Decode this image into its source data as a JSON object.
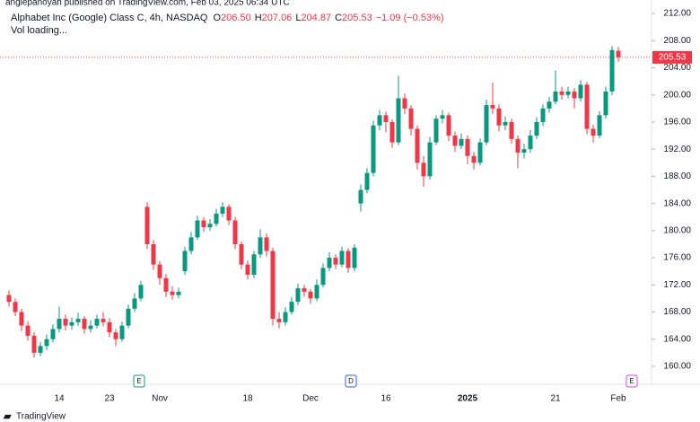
{
  "chart_data": {
    "type": "candlestick",
    "published": "anglepanoyan published on TradingView.com, Feb 03, 2025 06:34 UTC",
    "title": "Alphabet Inc (Google) Class C, 4h, NASDAQ",
    "ohlc_letters": [
      "O",
      "H",
      "L",
      "C"
    ],
    "ohlc_values": [
      "206.50",
      "207.06",
      "204.87",
      "205.53"
    ],
    "change": "−1.09 (−0.53%)",
    "status": "Vol loading...",
    "events": [
      "E",
      "D",
      "E"
    ],
    "brand": "TradingView",
    "up_color": "#089981",
    "down_color": "#f23645",
    "grid": false,
    "categories": [
      null,
      null,
      null,
      null,
      null,
      null,
      null,
      null,
      "14",
      null,
      null,
      null,
      null,
      null,
      null,
      null,
      "23",
      null,
      null,
      null,
      null,
      null,
      null,
      null,
      "Nov",
      null,
      null,
      null,
      null,
      null,
      null,
      null,
      null,
      null,
      null,
      null,
      null,
      null,
      "18",
      null,
      null,
      null,
      null,
      null,
      null,
      null,
      null,
      null,
      "Dec",
      null,
      null,
      null,
      null,
      null,
      null,
      null,
      null,
      null,
      null,
      null,
      "16",
      null,
      null,
      null,
      null,
      null,
      null,
      null,
      null,
      null,
      null,
      null,
      null,
      "2025",
      null,
      null,
      null,
      null,
      null,
      null,
      null,
      null,
      null,
      null,
      null,
      null,
      null,
      "21",
      null,
      null,
      null,
      null,
      null,
      null,
      null,
      null,
      null,
      "Feb"
    ],
    "open": [
      170.5,
      169.5,
      168,
      166,
      164.5,
      162,
      163,
      164,
      165.5,
      167,
      166,
      166.5,
      167,
      165.5,
      166,
      167,
      166.5,
      165,
      164,
      166,
      168.5,
      170,
      183.5,
      178,
      175,
      173,
      171,
      170.5,
      174,
      177,
      179,
      181.5,
      180.5,
      181,
      182.5,
      183.5,
      181.5,
      178,
      175,
      173.5,
      176.5,
      179,
      177,
      167,
      166.5,
      168,
      169.5,
      171.5,
      171,
      170,
      172,
      174.5,
      176,
      175,
      177,
      174.5,
      184,
      186,
      188.5,
      195.5,
      197,
      196,
      193,
      199.5,
      198,
      195,
      190,
      188,
      193,
      196.5,
      197,
      194,
      192.5,
      193.5,
      191,
      190,
      193,
      198.5,
      198,
      195.5,
      196,
      193.5,
      191.5,
      192,
      194,
      196,
      198,
      199,
      200.5,
      200,
      200.5,
      199.5,
      201.5,
      195,
      194,
      197,
      200.5,
      206.5
    ],
    "high": [
      171.2,
      170.0,
      168.5,
      166.6,
      165.0,
      163.6,
      164.7,
      166.2,
      168.8,
      167.6,
      167.2,
      167.9,
      167.4,
      166.8,
      167.6,
      168.0,
      167.1,
      165.5,
      166.6,
      169.1,
      170.8,
      172.6,
      184.2,
      178.6,
      175.5,
      173.6,
      171.8,
      171.6,
      177.6,
      179.8,
      182.2,
      182.0,
      181.7,
      183.2,
      184.2,
      183.9,
      182.0,
      178.4,
      175.6,
      177.0,
      180.2,
      179.6,
      177.5,
      168.0,
      168.7,
      170.2,
      172.2,
      172.0,
      171.4,
      172.8,
      175.2,
      176.8,
      176.5,
      177.6,
      177.4,
      178.0,
      186.8,
      189.2,
      196.2,
      197.8,
      197.5,
      196.4,
      202.8,
      200.2,
      198.5,
      195.5,
      191.0,
      193.8,
      197.0,
      197.8,
      197.4,
      194.6,
      194.3,
      194.0,
      191.6,
      193.6,
      199.3,
      201.8,
      198.6,
      196.8,
      196.5,
      194.0,
      192.8,
      194.8,
      196.7,
      198.6,
      199.7,
      203.6,
      201.2,
      201.2,
      201.0,
      202.2,
      201.9,
      195.6,
      197.6,
      201.2,
      207.2,
      207.06
    ],
    "low": [
      168.8,
      167.4,
      165.2,
      163.8,
      161.3,
      161.5,
      162.4,
      163.5,
      165.0,
      165.3,
      165.4,
      166.0,
      164.8,
      165.0,
      165.6,
      165.9,
      164.3,
      163.0,
      163.6,
      165.6,
      168.0,
      169.6,
      177.3,
      174.2,
      172.0,
      170.2,
      169.8,
      170.0,
      173.5,
      176.5,
      178.6,
      179.8,
      180.0,
      180.6,
      182.0,
      180.8,
      177.3,
      174.3,
      172.8,
      173.0,
      176.0,
      176.2,
      166.0,
      165.6,
      166.0,
      167.6,
      169.0,
      170.3,
      169.2,
      169.6,
      171.6,
      174.0,
      174.3,
      174.6,
      173.8,
      174.0,
      182.8,
      185.5,
      188.0,
      194.8,
      194.5,
      192.2,
      192.6,
      197.2,
      194.0,
      189.0,
      186.5,
      187.5,
      192.6,
      195.8,
      193.2,
      191.6,
      192.0,
      189.8,
      189.0,
      189.6,
      192.6,
      197.2,
      194.6,
      194.8,
      192.8,
      189.2,
      190.6,
      191.5,
      193.5,
      195.4,
      197.4,
      198.6,
      199.3,
      199.5,
      198.0,
      199.0,
      194.2,
      193.0,
      193.6,
      196.5,
      200.0,
      204.87
    ],
    "close": [
      169.5,
      168,
      166,
      164.5,
      162,
      163,
      164,
      165.5,
      167,
      166,
      166.5,
      167,
      165.5,
      166,
      167,
      166.5,
      165,
      164,
      166,
      168.5,
      170,
      172,
      178,
      175,
      173,
      171,
      170.5,
      171,
      177,
      179,
      181.5,
      180.5,
      181,
      182.5,
      183.5,
      181.5,
      178,
      175,
      173.5,
      176.5,
      179,
      177,
      167,
      166.5,
      168,
      169.5,
      171.5,
      171,
      170,
      172,
      174.5,
      176,
      175,
      177,
      174.5,
      177.5,
      186,
      188.5,
      195.5,
      197,
      196,
      193,
      199.5,
      198,
      195,
      190,
      188,
      193,
      196.5,
      197,
      194,
      192.5,
      193.5,
      191,
      190,
      193,
      198.5,
      198,
      195.5,
      196,
      193.5,
      191.5,
      192,
      194,
      196,
      198,
      199,
      200.5,
      200,
      200.5,
      199.5,
      201.5,
      195,
      194,
      197,
      200.5,
      206.62,
      205.53
    ],
    "ylim": [
      158.2,
      212.4
    ],
    "yticks": [
      {
        "value": 160,
        "label": "160.00"
      },
      {
        "value": 164,
        "label": "164.00"
      },
      {
        "value": 168,
        "label": "168.00"
      },
      {
        "value": 172,
        "label": "172.00"
      },
      {
        "value": 176,
        "label": "176.00"
      },
      {
        "value": 180,
        "label": "180.00"
      },
      {
        "value": 184,
        "label": "184.00"
      },
      {
        "value": 188,
        "label": "188.00"
      },
      {
        "value": 192,
        "label": "192.00"
      },
      {
        "value": 196,
        "label": "196.00"
      },
      {
        "value": 200,
        "label": "200.00"
      },
      {
        "value": 204,
        "label": "204.00"
      },
      {
        "value": 208,
        "label": "208.00"
      },
      {
        "value": 212,
        "label": "212.00"
      }
    ]
  }
}
